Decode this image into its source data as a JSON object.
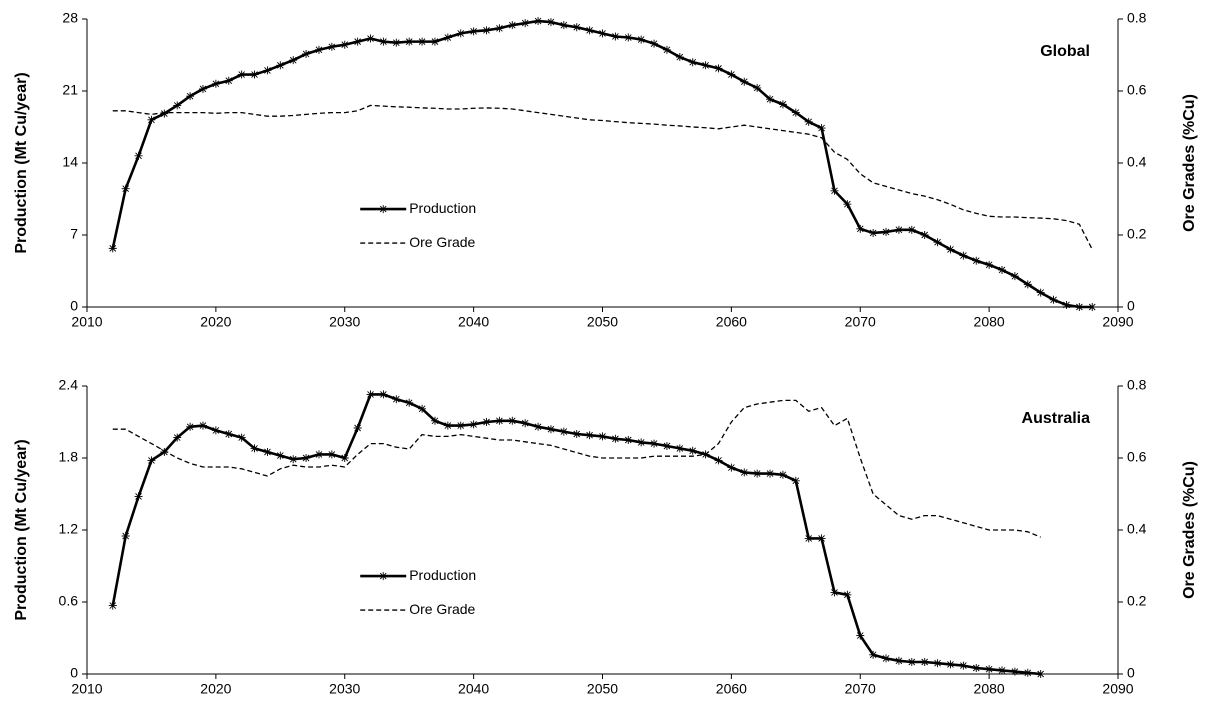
{
  "chart_data": [
    {
      "type": "line",
      "annotation": "Global",
      "ylabel": "Production (Mt Cu/year)",
      "y2label": "Ore Grades (%Cu)",
      "xlim": [
        2010,
        2090
      ],
      "xticks": [
        2010,
        2020,
        2030,
        2040,
        2050,
        2060,
        2070,
        2080,
        2090
      ],
      "ylim": [
        0,
        28
      ],
      "yticks": [
        0,
        7,
        14,
        21,
        28
      ],
      "y2lim": [
        0,
        0.8
      ],
      "y2ticks": [
        0,
        0.2,
        0.4,
        0.6,
        0.8
      ],
      "legend": "center-left",
      "x": [
        2012,
        2013,
        2014,
        2015,
        2016,
        2017,
        2018,
        2019,
        2020,
        2021,
        2022,
        2023,
        2024,
        2025,
        2026,
        2027,
        2028,
        2029,
        2030,
        2031,
        2032,
        2033,
        2034,
        2035,
        2036,
        2037,
        2038,
        2039,
        2040,
        2041,
        2042,
        2043,
        2044,
        2045,
        2046,
        2047,
        2048,
        2049,
        2050,
        2051,
        2052,
        2053,
        2054,
        2055,
        2056,
        2057,
        2058,
        2059,
        2060,
        2061,
        2062,
        2063,
        2064,
        2065,
        2066,
        2067,
        2068,
        2069,
        2070,
        2071,
        2072,
        2073,
        2074,
        2075,
        2076,
        2077,
        2078,
        2079,
        2080,
        2081,
        2082,
        2083,
        2084,
        2085,
        2086,
        2087,
        2088
      ],
      "series": [
        {
          "name": "Production",
          "color": "#000000",
          "axis": "y",
          "dash": "solid",
          "marker": "asterisk",
          "values": [
            5.7,
            11.5,
            14.7,
            18.2,
            18.8,
            19.6,
            20.5,
            21.2,
            21.7,
            22.0,
            22.6,
            22.6,
            23.0,
            23.5,
            24.0,
            24.6,
            25.0,
            25.3,
            25.5,
            25.8,
            26.1,
            25.8,
            25.7,
            25.8,
            25.8,
            25.8,
            26.2,
            26.6,
            26.8,
            26.9,
            27.1,
            27.4,
            27.6,
            27.8,
            27.7,
            27.4,
            27.2,
            26.9,
            26.6,
            26.3,
            26.2,
            26.0,
            25.6,
            25.0,
            24.3,
            23.8,
            23.5,
            23.2,
            22.6,
            21.9,
            21.3,
            20.2,
            19.7,
            18.9,
            18.0,
            17.4,
            11.3,
            10.0,
            7.6,
            7.2,
            7.3,
            7.5,
            7.5,
            7.0,
            6.3,
            5.6,
            5.0,
            4.5,
            4.1,
            3.6,
            3.0,
            2.2,
            1.4,
            0.7,
            0.2,
            0.0,
            0.0
          ]
        },
        {
          "name": "Ore Grade",
          "color": "#000000",
          "axis": "y2",
          "dash": "dashed",
          "marker": "none",
          "values": [
            0.545,
            0.545,
            0.54,
            0.535,
            0.54,
            0.54,
            0.54,
            0.54,
            0.538,
            0.54,
            0.54,
            0.535,
            0.53,
            0.53,
            0.532,
            0.535,
            0.538,
            0.54,
            0.54,
            0.545,
            0.56,
            0.558,
            0.556,
            0.555,
            0.553,
            0.552,
            0.55,
            0.55,
            0.552,
            0.553,
            0.552,
            0.55,
            0.545,
            0.54,
            0.535,
            0.53,
            0.525,
            0.52,
            0.518,
            0.515,
            0.512,
            0.51,
            0.508,
            0.505,
            0.503,
            0.5,
            0.498,
            0.495,
            0.5,
            0.505,
            0.5,
            0.495,
            0.49,
            0.485,
            0.48,
            0.47,
            0.43,
            0.41,
            0.37,
            0.345,
            0.335,
            0.325,
            0.315,
            0.308,
            0.298,
            0.285,
            0.27,
            0.26,
            0.252,
            0.25,
            0.25,
            0.248,
            0.247,
            0.245,
            0.24,
            0.23,
            0.16
          ]
        }
      ]
    },
    {
      "type": "line",
      "annotation": "Australia",
      "ylabel": "Production (Mt Cu/year)",
      "y2label": "Ore Grades (%Cu)",
      "xlim": [
        2010,
        2090
      ],
      "xticks": [
        2010,
        2020,
        2030,
        2040,
        2050,
        2060,
        2070,
        2080,
        2090
      ],
      "ylim": [
        0,
        2.4
      ],
      "yticks": [
        0,
        0.6,
        1.2,
        1.8,
        2.4
      ],
      "y2lim": [
        0,
        0.8
      ],
      "y2ticks": [
        0,
        0.2,
        0.4,
        0.6,
        0.8
      ],
      "legend": "center-left",
      "x": [
        2012,
        2013,
        2014,
        2015,
        2016,
        2017,
        2018,
        2019,
        2020,
        2021,
        2022,
        2023,
        2024,
        2025,
        2026,
        2027,
        2028,
        2029,
        2030,
        2031,
        2032,
        2033,
        2034,
        2035,
        2036,
        2037,
        2038,
        2039,
        2040,
        2041,
        2042,
        2043,
        2044,
        2045,
        2046,
        2047,
        2048,
        2049,
        2050,
        2051,
        2052,
        2053,
        2054,
        2055,
        2056,
        2057,
        2058,
        2059,
        2060,
        2061,
        2062,
        2063,
        2064,
        2065,
        2066,
        2067,
        2068,
        2069,
        2070,
        2071,
        2072,
        2073,
        2074,
        2075,
        2076,
        2077,
        2078,
        2079,
        2080,
        2081,
        2082,
        2083,
        2084
      ],
      "series": [
        {
          "name": "Production",
          "color": "#000000",
          "axis": "y",
          "dash": "solid",
          "marker": "asterisk",
          "values": [
            0.57,
            1.15,
            1.48,
            1.78,
            1.85,
            1.97,
            2.06,
            2.07,
            2.03,
            2.0,
            1.97,
            1.88,
            1.85,
            1.82,
            1.79,
            1.8,
            1.83,
            1.83,
            1.8,
            2.05,
            2.33,
            2.33,
            2.29,
            2.26,
            2.21,
            2.11,
            2.07,
            2.07,
            2.08,
            2.1,
            2.11,
            2.11,
            2.09,
            2.06,
            2.04,
            2.02,
            2.0,
            1.99,
            1.98,
            1.96,
            1.95,
            1.93,
            1.92,
            1.9,
            1.88,
            1.86,
            1.83,
            1.78,
            1.72,
            1.68,
            1.67,
            1.67,
            1.66,
            1.61,
            1.13,
            1.13,
            0.68,
            0.66,
            0.32,
            0.16,
            0.13,
            0.11,
            0.1,
            0.1,
            0.09,
            0.08,
            0.07,
            0.05,
            0.04,
            0.03,
            0.02,
            0.01,
            0.0
          ]
        },
        {
          "name": "Ore Grade",
          "color": "#000000",
          "axis": "y2",
          "dash": "dashed",
          "marker": "none",
          "values": [
            0.68,
            0.68,
            0.66,
            0.64,
            0.62,
            0.6,
            0.585,
            0.575,
            0.575,
            0.575,
            0.57,
            0.56,
            0.55,
            0.57,
            0.58,
            0.575,
            0.575,
            0.58,
            0.575,
            0.61,
            0.64,
            0.64,
            0.63,
            0.625,
            0.665,
            0.66,
            0.66,
            0.665,
            0.66,
            0.655,
            0.65,
            0.65,
            0.645,
            0.64,
            0.635,
            0.625,
            0.615,
            0.605,
            0.6,
            0.6,
            0.6,
            0.6,
            0.605,
            0.605,
            0.605,
            0.605,
            0.61,
            0.64,
            0.7,
            0.74,
            0.75,
            0.755,
            0.76,
            0.76,
            0.73,
            0.74,
            0.69,
            0.71,
            0.6,
            0.5,
            0.47,
            0.44,
            0.43,
            0.44,
            0.44,
            0.43,
            0.42,
            0.41,
            0.4,
            0.4,
            0.4,
            0.395,
            0.38
          ]
        }
      ]
    }
  ]
}
